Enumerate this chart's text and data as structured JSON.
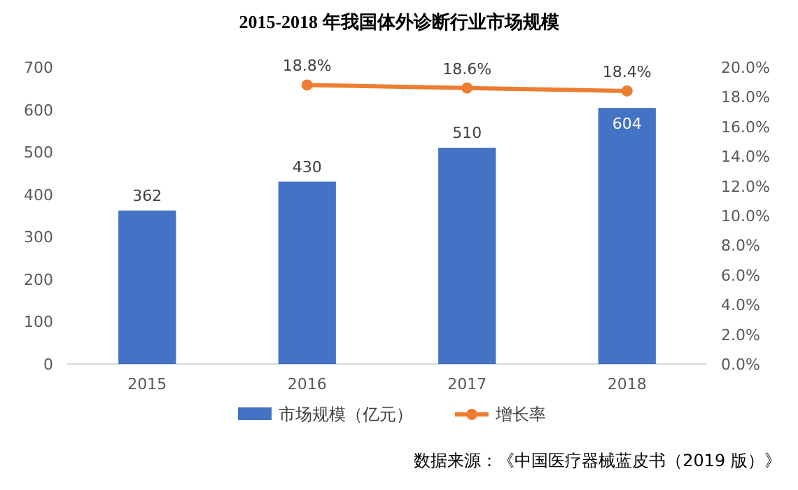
{
  "chart_data": {
    "type": "bar",
    "title": "2015-2018 年我国体外诊断行业市场规模",
    "categories": [
      "2015",
      "2016",
      "2017",
      "2018"
    ],
    "series": [
      {
        "name": "市场规模（亿元）",
        "color": "#4472c4",
        "values": [
          362,
          430,
          510,
          604
        ],
        "value_labels": [
          "362",
          "430",
          "510",
          "604"
        ]
      },
      {
        "name": "增长率",
        "type": "line",
        "axis": "y2",
        "color": "#ed7d31",
        "values": [
          null,
          18.8,
          18.6,
          18.4
        ],
        "value_labels": [
          null,
          "18.8%",
          "18.6%",
          "18.4%"
        ]
      }
    ],
    "ylim": [
      0,
      700
    ],
    "yticks": [
      0,
      100,
      200,
      300,
      400,
      500,
      600,
      700
    ],
    "y2lim": [
      0,
      20
    ],
    "y2ticks": [
      {
        "value": 0,
        "label": "0.0%"
      },
      {
        "value": 2,
        "label": "2.0%"
      },
      {
        "value": 4,
        "label": "4.0%"
      },
      {
        "value": 6,
        "label": "6.0%"
      },
      {
        "value": 8,
        "label": "8.0%"
      },
      {
        "value": 10,
        "label": "10.0%"
      },
      {
        "value": 12,
        "label": "12.0%"
      },
      {
        "value": 14,
        "label": "14.0%"
      },
      {
        "value": 16,
        "label": "16.0%"
      },
      {
        "value": 18,
        "label": "18.0%"
      },
      {
        "value": 20,
        "label": "20.0%"
      }
    ],
    "marker": "circle",
    "legend": "bottom",
    "annotations": [
      "数据来源：《中国医疗器械蓝皮书（2019 版）》"
    ]
  }
}
